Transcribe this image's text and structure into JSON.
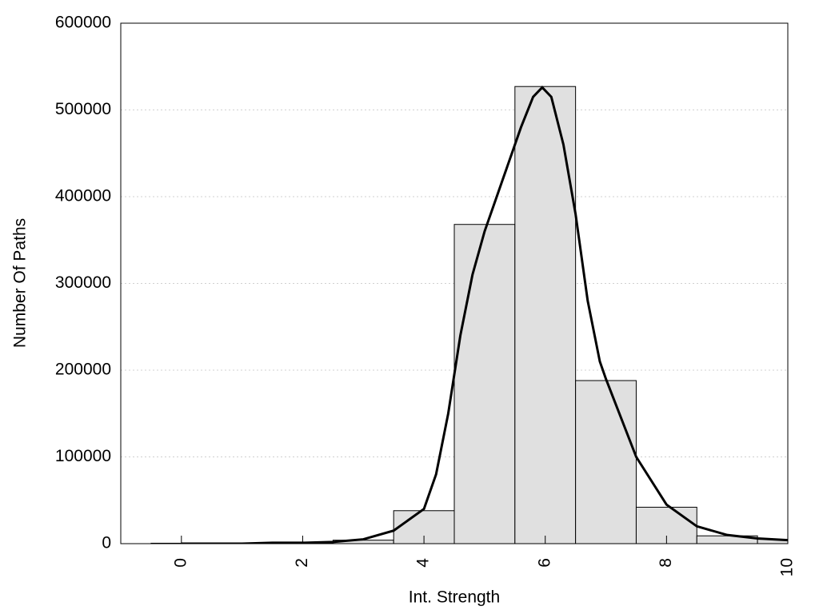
{
  "chart_data": {
    "type": "histogram",
    "xlabel": "Int. Strength",
    "ylabel": "Number Of Paths",
    "bins": [
      -0.5,
      0.5,
      1.5,
      2.5,
      3.5,
      4.5,
      5.5,
      6.5,
      7.5,
      8.5,
      9.5,
      10.5
    ],
    "values": [
      500,
      500,
      1000,
      4000,
      38000,
      368000,
      527000,
      188000,
      42000,
      9000,
      5000
    ],
    "color": "#e0e0e0",
    "curve": {
      "x": [
        0,
        1,
        1.5,
        2,
        2.5,
        3,
        3.5,
        4,
        4.2,
        4.4,
        4.6,
        4.8,
        5,
        5.3,
        5.6,
        5.8,
        5.95,
        6.1,
        6.3,
        6.5,
        6.7,
        6.9,
        7,
        7.5,
        8,
        8.5,
        9,
        9.5,
        10
      ],
      "values": [
        0,
        0,
        1000,
        1000,
        2000,
        5000,
        15000,
        40000,
        80000,
        150000,
        240000,
        310000,
        360000,
        420000,
        480000,
        515000,
        526000,
        515000,
        460000,
        380000,
        280000,
        210000,
        190000,
        100000,
        45000,
        20000,
        10000,
        6000,
        4000
      ],
      "color": "#000000"
    },
    "xlim": [
      -1,
      10
    ],
    "xticks": [
      0,
      2,
      4,
      6,
      8,
      10
    ],
    "ylim": [
      0,
      600000
    ],
    "yticks": [
      0,
      100000,
      200000,
      300000,
      400000,
      500000,
      600000
    ],
    "grid": true
  }
}
